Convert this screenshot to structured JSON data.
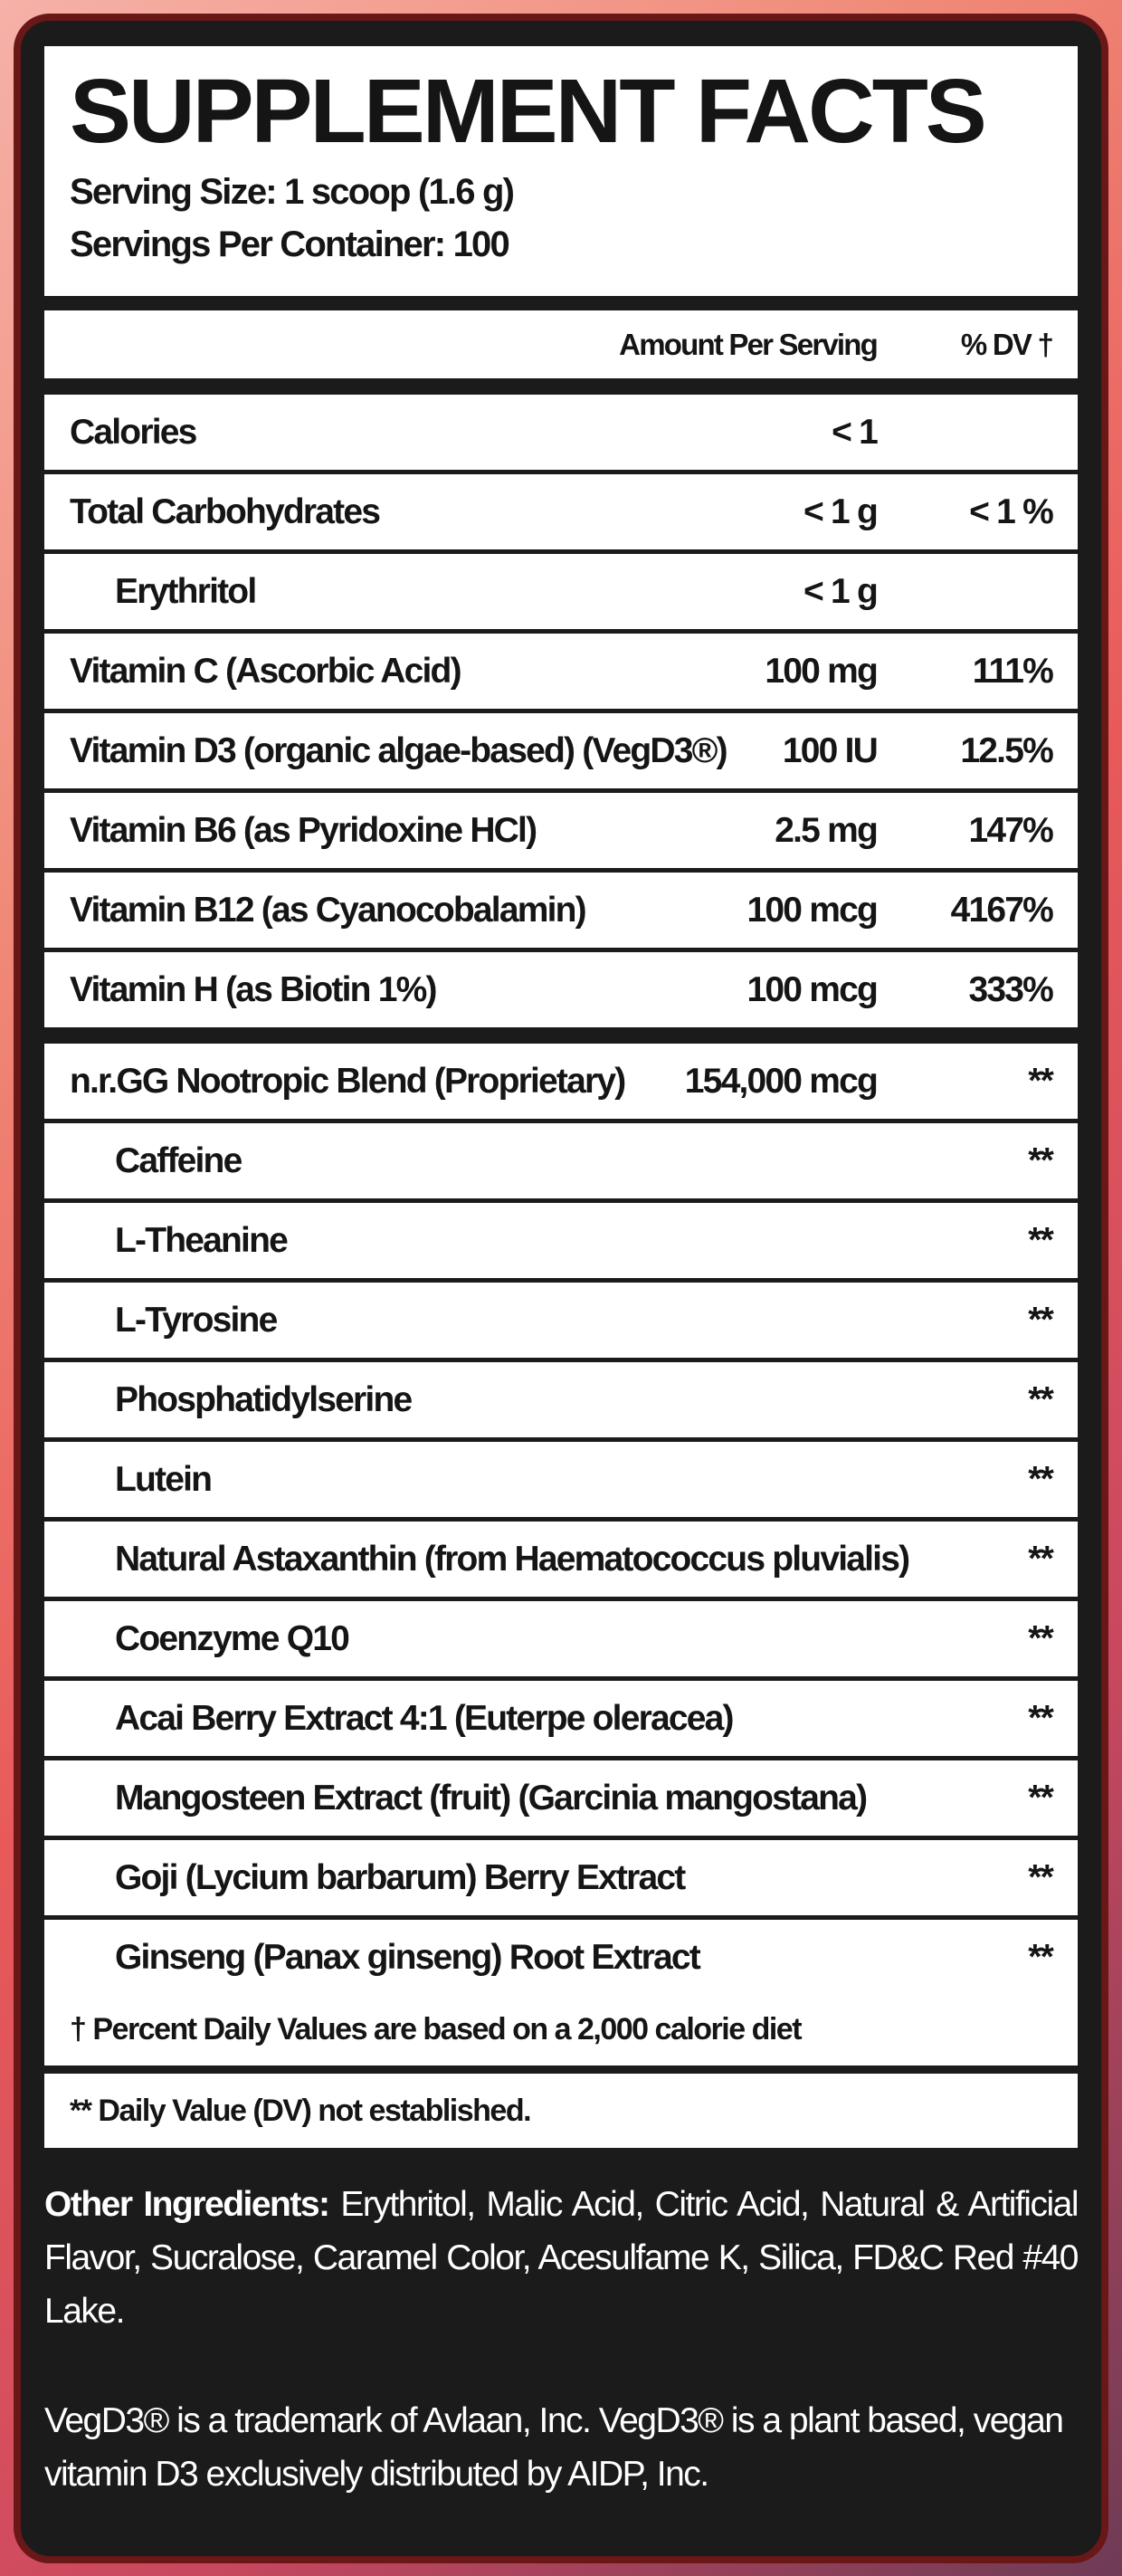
{
  "title": "SUPPLEMENT FACTS",
  "serving_size": "Serving Size: 1 scoop (1.6 g)",
  "servings_per_container": "Servings Per Container: 100",
  "header": {
    "amount": "Amount Per Serving",
    "dv": "% DV †"
  },
  "nutrients": [
    {
      "name": "Calories",
      "amount": "< 1",
      "dv": "",
      "indent": false
    },
    {
      "name": "Total Carbohydrates",
      "amount": "< 1 g",
      "dv": "< 1 %",
      "indent": false
    },
    {
      "name": "Erythritol",
      "amount": "< 1 g",
      "dv": "",
      "indent": true
    },
    {
      "name": "Vitamin C (Ascorbic Acid)",
      "amount": "100 mg",
      "dv": "111%",
      "indent": false
    },
    {
      "name": "Vitamin D3 (organic algae-based) (VegD3®)",
      "amount": "100 IU",
      "dv": "12.5%",
      "indent": false
    },
    {
      "name": "Vitamin B6 (as Pyridoxine HCl)",
      "amount": "2.5 mg",
      "dv": "147%",
      "indent": false
    },
    {
      "name": "Vitamin B12 (as Cyanocobalamin)",
      "amount": "100 mcg",
      "dv": "4167%",
      "indent": false
    },
    {
      "name": "Vitamin H (as Biotin 1%)",
      "amount": "100 mcg",
      "dv": "333%",
      "indent": false
    }
  ],
  "blend": {
    "name": "n.r.GG Nootropic Blend (Proprietary)",
    "amount": "154,000 mcg",
    "dv": "**",
    "ingredients": [
      {
        "name": "Caffeine",
        "dv": "**"
      },
      {
        "name": "L-Theanine",
        "dv": "**"
      },
      {
        "name": "L-Tyrosine",
        "dv": "**"
      },
      {
        "name": "Phosphatidylserine",
        "dv": "**"
      },
      {
        "name": "Lutein",
        "dv": "**"
      },
      {
        "name": "Natural Astaxanthin (from Haematococcus pluvialis)",
        "dv": "**"
      },
      {
        "name": "Coenzyme Q10",
        "dv": "**"
      },
      {
        "name": "Acai Berry Extract 4:1 (Euterpe oleracea)",
        "dv": "**"
      },
      {
        "name": "Mangosteen Extract (fruit) (Garcinia mangostana)",
        "dv": "**"
      },
      {
        "name": "Goji (Lycium barbarum) Berry Extract",
        "dv": "**"
      },
      {
        "name": "Ginseng (Panax ginseng) Root Extract",
        "dv": "**"
      }
    ]
  },
  "footnotes": [
    "† Percent Daily Values are based on a 2,000 calorie diet",
    "** Daily Value (DV) not established."
  ],
  "other_ingredients": {
    "label": "Other Ingredients:",
    "text": " Erythritol, Malic Acid, Citric Acid, Natural & Artificial Flavor, Sucralose, Caramel Color, Acesulfame K, Silica, FD&C Red #40 Lake."
  },
  "trademark": "VegD3® is a trademark of Avlaan, Inc. VegD3® is a plant based, vegan vitamin D3 exclusively distributed by AIDP, Inc.",
  "colors": {
    "card": "#1b1b1b",
    "border": "#6a1717",
    "panel": "#ffffff"
  }
}
